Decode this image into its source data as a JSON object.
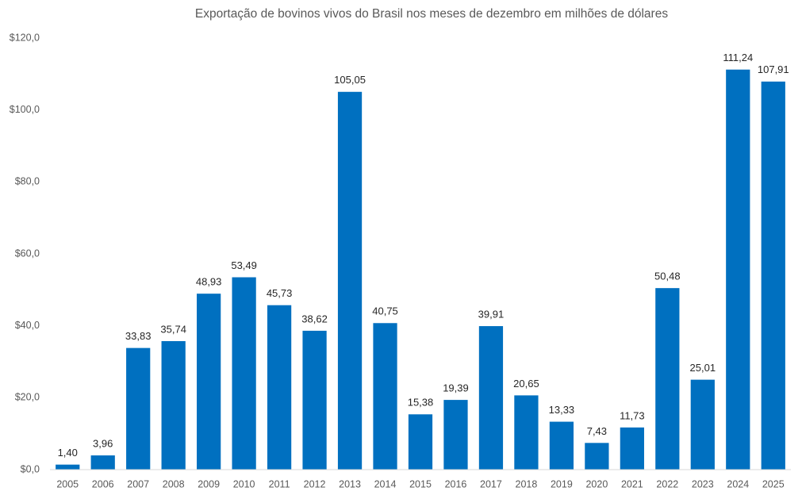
{
  "chart_data": {
    "type": "bar",
    "title": "Exportação de bovinos vivos do Brasil nos meses de dezembro em milhões de dólares",
    "categories": [
      "2005",
      "2006",
      "2007",
      "2008",
      "2009",
      "2010",
      "2011",
      "2012",
      "2013",
      "2014",
      "2015",
      "2016",
      "2017",
      "2018",
      "2019",
      "2020",
      "2021",
      "2022",
      "2023",
      "2024",
      "2025"
    ],
    "values": [
      1.4,
      3.96,
      33.83,
      35.74,
      48.93,
      53.49,
      45.73,
      38.62,
      105.05,
      40.75,
      15.38,
      19.39,
      39.91,
      20.65,
      13.33,
      7.43,
      11.73,
      50.48,
      25.01,
      111.24,
      107.91
    ],
    "value_labels": [
      "1,40",
      "3,96",
      "33,83",
      "35,74",
      "48,93",
      "53,49",
      "45,73",
      "38,62",
      "105,05",
      "40,75",
      "15,38",
      "19,39",
      "39,91",
      "20,65",
      "13,33",
      "7,43",
      "11,73",
      "50,48",
      "25,01",
      "111,24",
      "107,91"
    ],
    "color": "#0070c0",
    "ylim": [
      0,
      120
    ],
    "yticks": [
      {
        "value": 0,
        "label": "$0,0"
      },
      {
        "value": 20,
        "label": "$20,0"
      },
      {
        "value": 40,
        "label": "$40,0"
      },
      {
        "value": 60,
        "label": "$60,0"
      },
      {
        "value": 80,
        "label": "$80,0"
      },
      {
        "value": 100,
        "label": "$100,0"
      },
      {
        "value": 120,
        "label": "$120,0"
      }
    ],
    "grid": false
  }
}
